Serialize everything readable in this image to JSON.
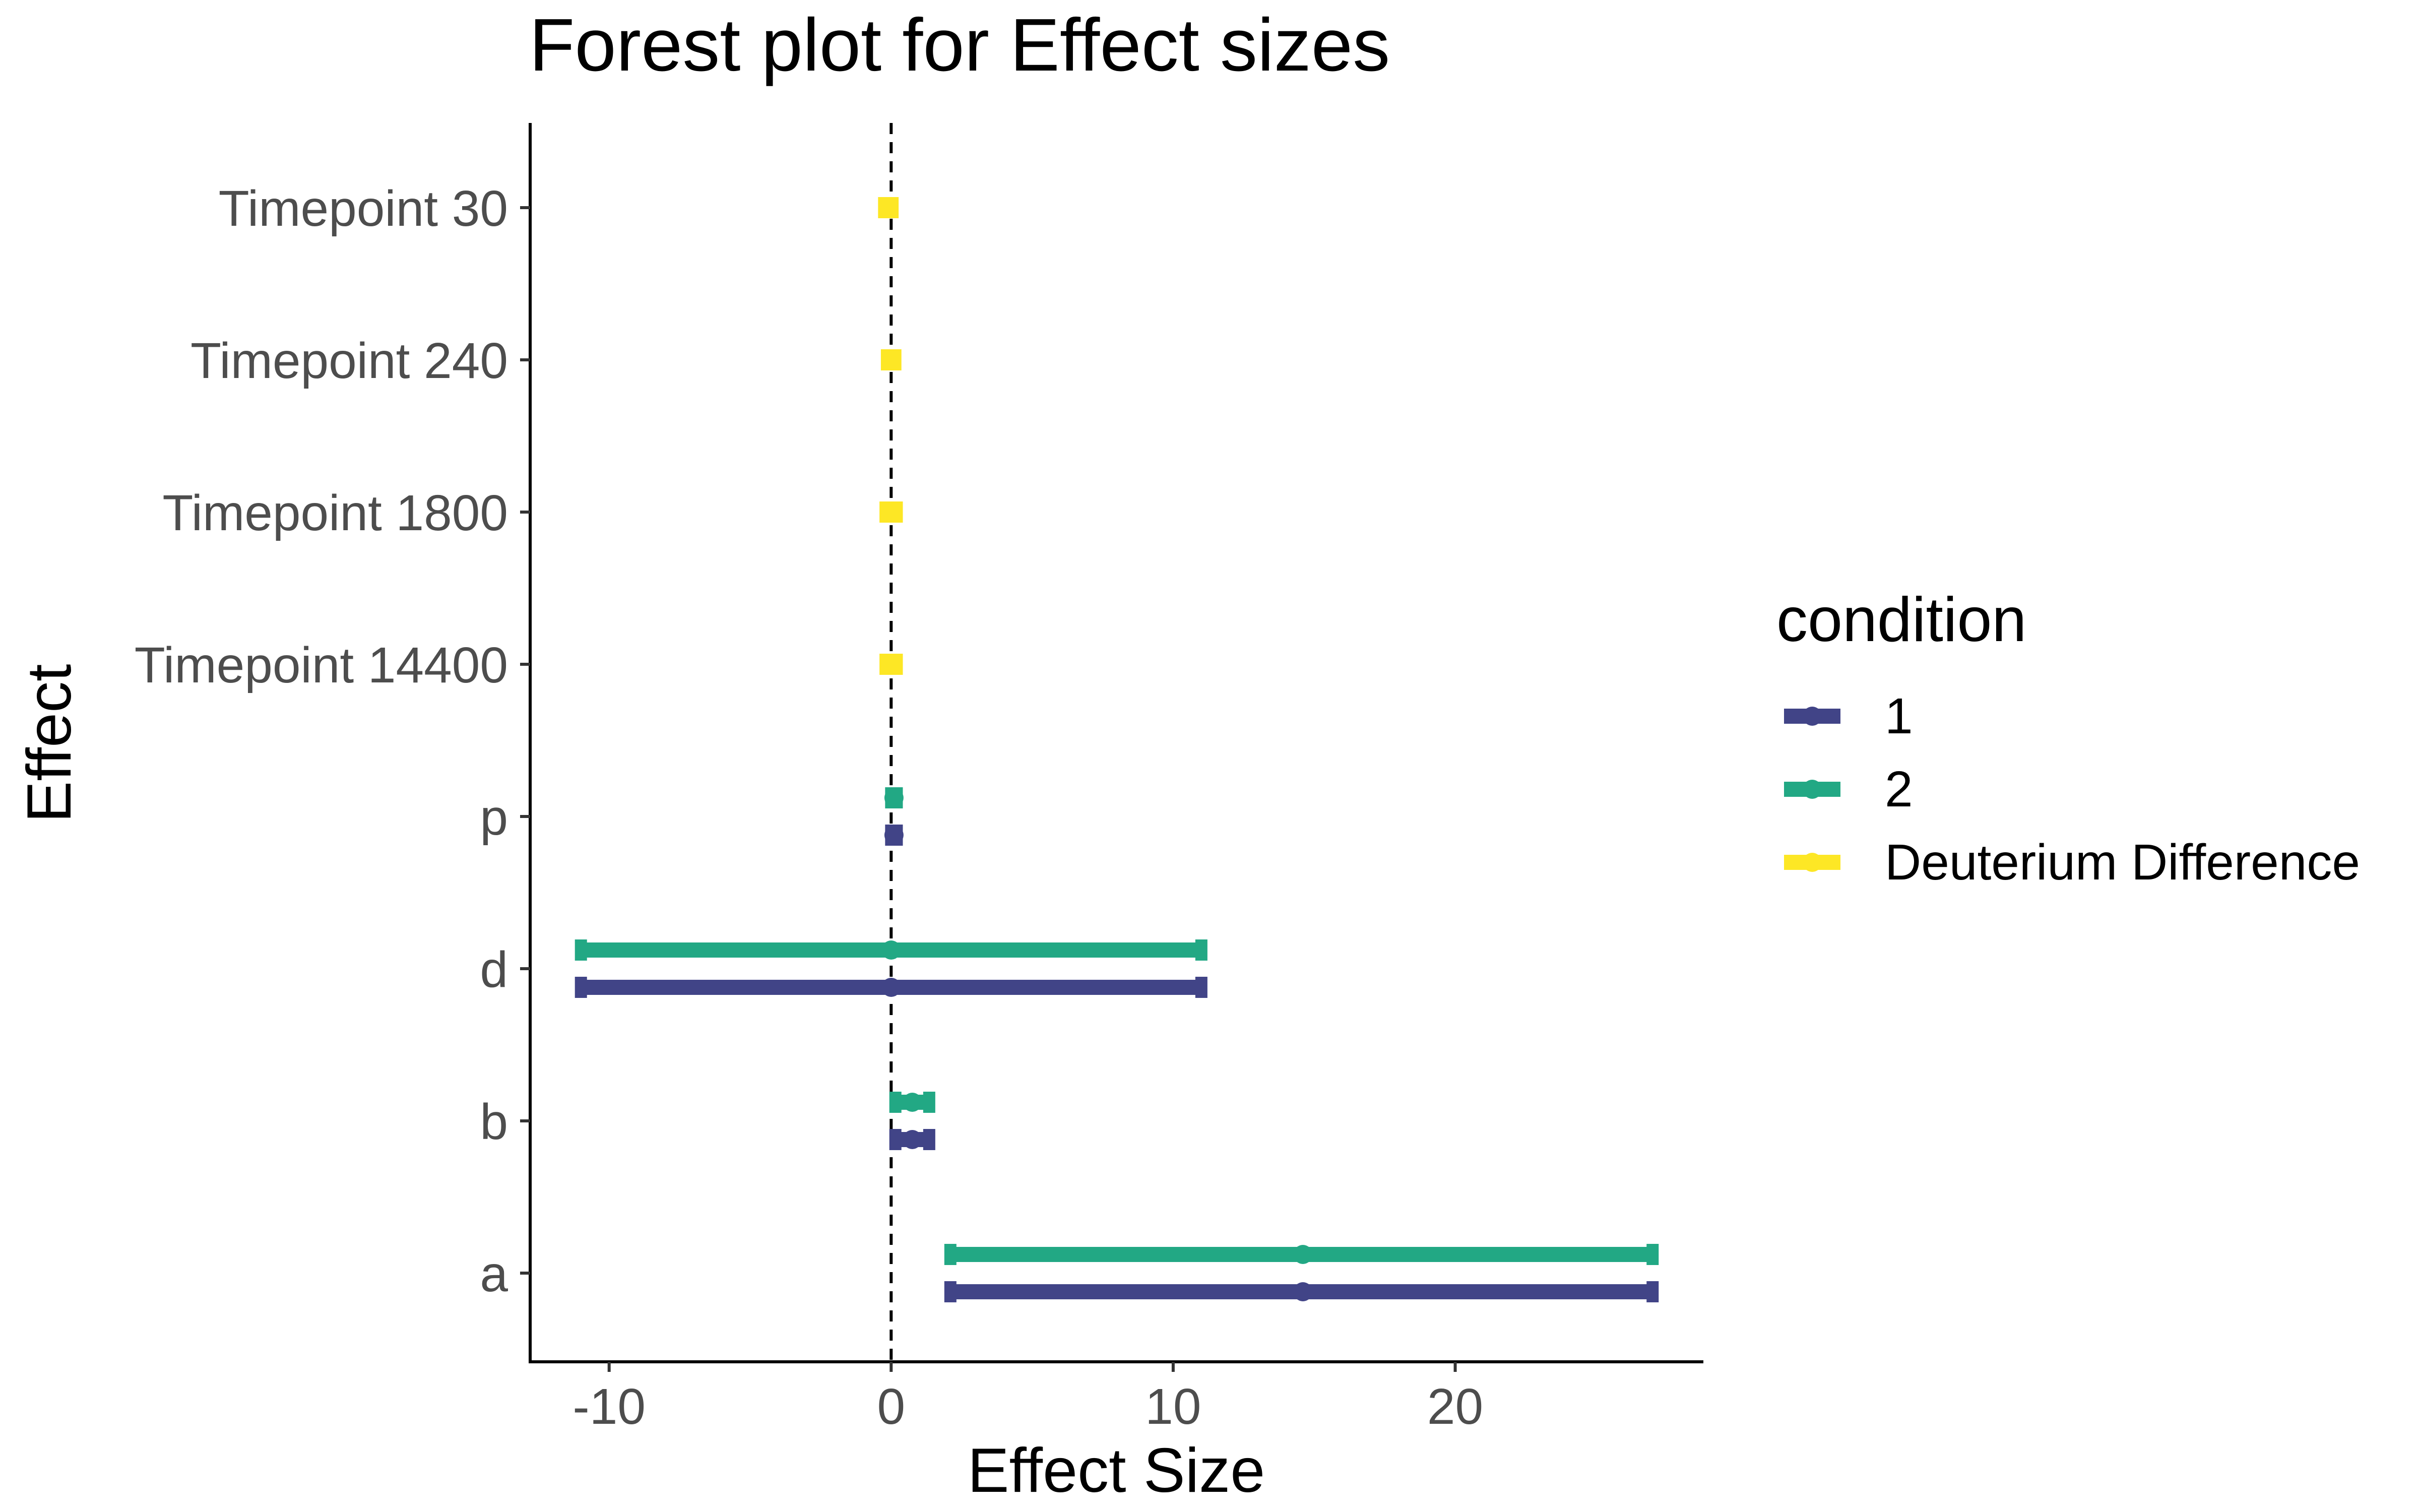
{
  "chart_data": {
    "type": "forest",
    "title": "Forest plot for Effect sizes",
    "xlabel": "Effect Size",
    "ylabel": "Effect",
    "xlim": [
      -12.8,
      28.8
    ],
    "xticks": [
      -10,
      0,
      10,
      20
    ],
    "xtick_labels": [
      "-10",
      "0",
      "10",
      "20"
    ],
    "reference_line": 0,
    "categories": [
      "a",
      "b",
      "d",
      "p",
      "Timepoint 14400",
      "Timepoint 1800",
      "Timepoint 240",
      "Timepoint 30"
    ],
    "series": [
      {
        "name": "1",
        "color": "#414487",
        "points": [
          {
            "category": "a",
            "estimate": 14.6,
            "lower": 2.1,
            "upper": 27.0
          },
          {
            "category": "b",
            "estimate": 0.75,
            "lower": 0.15,
            "upper": 1.35
          },
          {
            "category": "d",
            "estimate": 0.0,
            "lower": -11.0,
            "upper": 11.0
          },
          {
            "category": "p",
            "estimate": 0.1,
            "lower": 0.0,
            "upper": 0.2
          }
        ]
      },
      {
        "name": "2",
        "color": "#22a884",
        "points": [
          {
            "category": "a",
            "estimate": 14.6,
            "lower": 2.1,
            "upper": 27.0
          },
          {
            "category": "b",
            "estimate": 0.75,
            "lower": 0.15,
            "upper": 1.35
          },
          {
            "category": "d",
            "estimate": 0.0,
            "lower": -11.0,
            "upper": 11.0
          },
          {
            "category": "p",
            "estimate": 0.1,
            "lower": 0.0,
            "upper": 0.2
          }
        ]
      },
      {
        "name": "Deuterium Difference",
        "color": "#fde725",
        "points": [
          {
            "category": "Timepoint 14400",
            "estimate": 0.0,
            "lower": -0.2,
            "upper": 0.2
          },
          {
            "category": "Timepoint 1800",
            "estimate": 0.0,
            "lower": -0.2,
            "upper": 0.2
          },
          {
            "category": "Timepoint 240",
            "estimate": 0.0,
            "lower": -0.15,
            "upper": 0.15
          },
          {
            "category": "Timepoint 30",
            "estimate": -0.1,
            "lower": -0.25,
            "upper": 0.05
          }
        ]
      }
    ],
    "legend": {
      "title": "condition",
      "position": "right"
    },
    "grid": false
  }
}
